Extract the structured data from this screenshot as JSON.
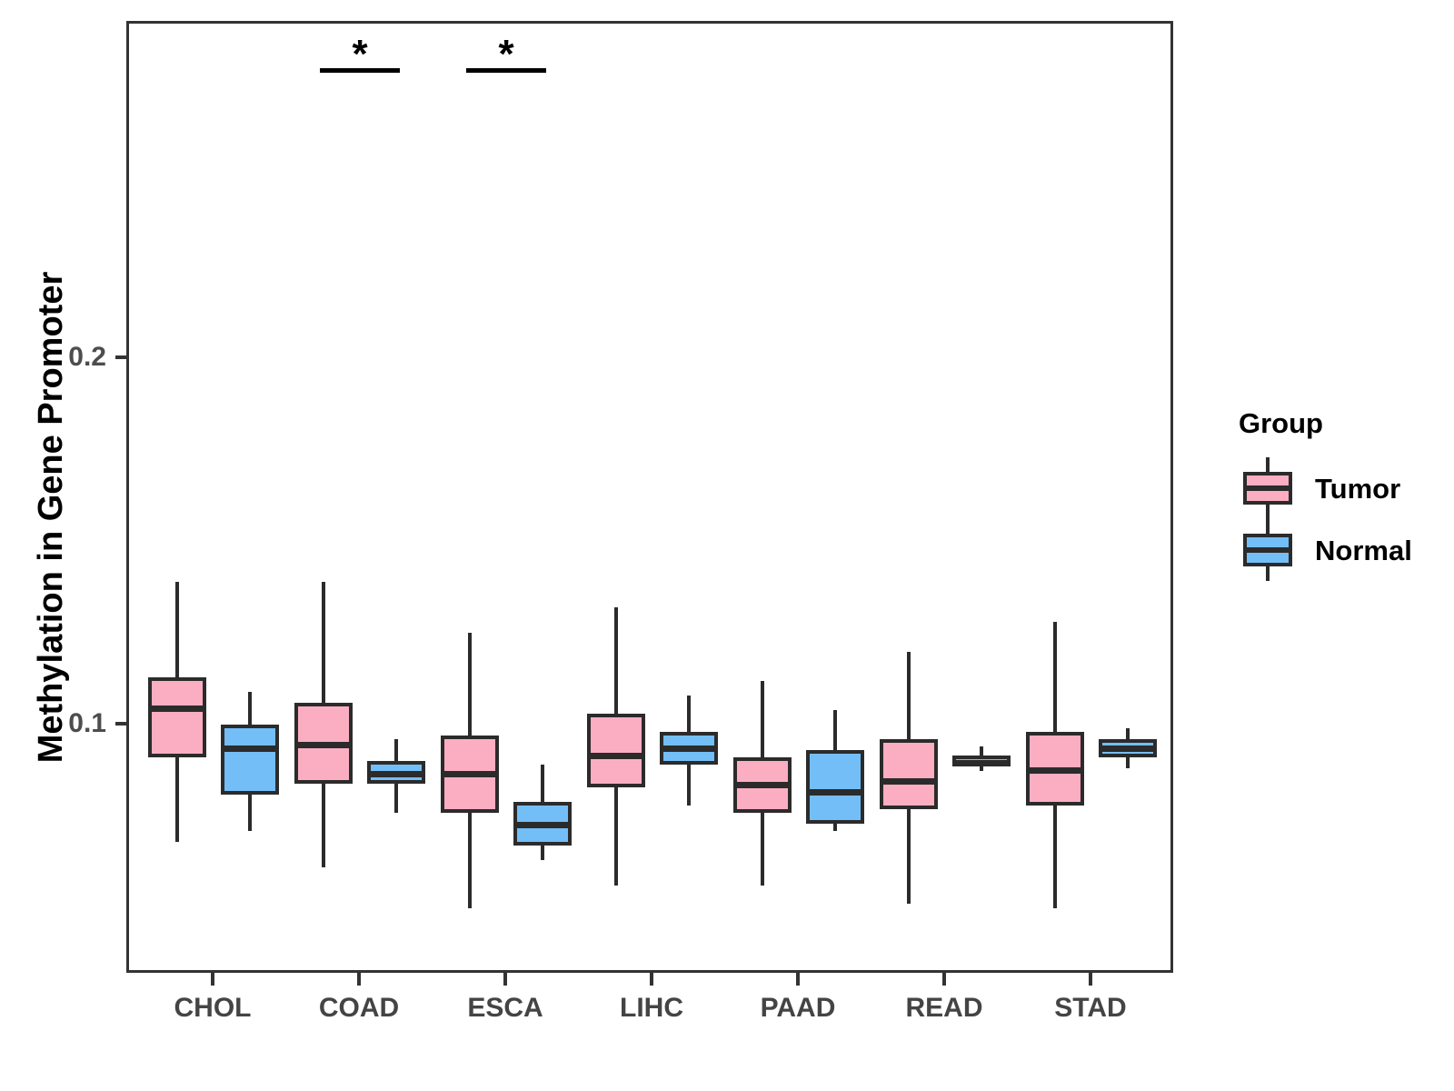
{
  "chart_data": {
    "type": "boxplot",
    "title": "",
    "xlabel": "",
    "ylabel": "Methylation in Gene Promoter",
    "categories": [
      "CHOL",
      "COAD",
      "ESCA",
      "LIHC",
      "PAAD",
      "READ",
      "STAD"
    ],
    "ylim": [
      0.032,
      0.292
    ],
    "y_ticks": [
      {
        "value": 0.1,
        "label": "0.1"
      },
      {
        "value": 0.2,
        "label": "0.2"
      }
    ],
    "grid": false,
    "legend_position": "right",
    "series": [
      {
        "name": "Tumor",
        "color": "#FBAEC2",
        "boxes": [
          {
            "category": "CHOL",
            "min": 0.068,
            "q1": 0.091,
            "median": 0.105,
            "q3": 0.113,
            "max": 0.139
          },
          {
            "category": "COAD",
            "min": 0.061,
            "q1": 0.084,
            "median": 0.095,
            "q3": 0.106,
            "max": 0.139
          },
          {
            "category": "ESCA",
            "min": 0.05,
            "q1": 0.076,
            "median": 0.087,
            "q3": 0.097,
            "max": 0.125
          },
          {
            "category": "LIHC",
            "min": 0.056,
            "q1": 0.083,
            "median": 0.092,
            "q3": 0.103,
            "max": 0.132
          },
          {
            "category": "PAAD",
            "min": 0.056,
            "q1": 0.076,
            "median": 0.084,
            "q3": 0.091,
            "max": 0.112
          },
          {
            "category": "READ",
            "min": 0.051,
            "q1": 0.077,
            "median": 0.085,
            "q3": 0.096,
            "max": 0.12
          },
          {
            "category": "STAD",
            "min": 0.05,
            "q1": 0.078,
            "median": 0.088,
            "q3": 0.098,
            "max": 0.128
          }
        ]
      },
      {
        "name": "Normal",
        "color": "#73BEF7",
        "boxes": [
          {
            "category": "CHOL",
            "min": 0.071,
            "q1": 0.081,
            "median": 0.094,
            "q3": 0.1,
            "max": 0.109
          },
          {
            "category": "COAD",
            "min": 0.076,
            "q1": 0.084,
            "median": 0.087,
            "q3": 0.09,
            "max": 0.096
          },
          {
            "category": "ESCA",
            "min": 0.063,
            "q1": 0.067,
            "median": 0.073,
            "q3": 0.079,
            "max": 0.089
          },
          {
            "category": "LIHC",
            "min": 0.078,
            "q1": 0.089,
            "median": 0.094,
            "q3": 0.098,
            "max": 0.108
          },
          {
            "category": "PAAD",
            "min": 0.071,
            "q1": 0.073,
            "median": 0.082,
            "q3": 0.093,
            "max": 0.104
          },
          {
            "category": "READ",
            "min": 0.0875,
            "q1": 0.0885,
            "median": 0.09,
            "q3": 0.0915,
            "max": 0.094
          },
          {
            "category": "STAD",
            "min": 0.088,
            "q1": 0.091,
            "median": 0.094,
            "q3": 0.096,
            "max": 0.099
          }
        ]
      }
    ],
    "significance_markers": [
      {
        "category": "COAD",
        "label": "*"
      },
      {
        "category": "ESCA",
        "label": "*"
      }
    ]
  },
  "legend": {
    "title": "Group",
    "items": [
      {
        "label": "Tumor",
        "color": "#FBAEC2"
      },
      {
        "label": "Normal",
        "color": "#73BEF7"
      }
    ]
  }
}
